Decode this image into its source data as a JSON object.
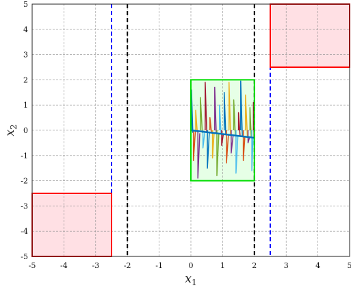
{
  "chart_data": {
    "type": "line",
    "xlabel": "x",
    "xlabel_sub": "1",
    "ylabel": "x",
    "ylabel_sub": "2",
    "xlim": [
      -5,
      5
    ],
    "ylim": [
      -5,
      5
    ],
    "xticks": [
      -5,
      -4,
      -3,
      -2,
      -1,
      0,
      1,
      2,
      3,
      4,
      5
    ],
    "yticks": [
      -5,
      -4,
      -3,
      -2,
      -1,
      0,
      1,
      2,
      3,
      4,
      5
    ],
    "xtick_labels": [
      "-5",
      "-4",
      "-3",
      "-2",
      "-1",
      "0",
      "1",
      "2",
      "3",
      "4",
      "5"
    ],
    "ytick_labels": [
      "-5",
      "-4",
      "-3",
      "-2",
      "-1",
      "0",
      "1",
      "2",
      "3",
      "4",
      "5"
    ],
    "grid": true,
    "grid_style": "dashed",
    "rectangles": [
      {
        "kind": "unsafe",
        "x": [
          -5,
          -2.5
        ],
        "y": [
          -5,
          -2.5
        ],
        "edge": "#ff0000",
        "fill": "#ffe0e4"
      },
      {
        "kind": "unsafe",
        "x": [
          2.5,
          5
        ],
        "y": [
          2.5,
          5
        ],
        "edge": "#ff0000",
        "fill": "#ffe0e4"
      },
      {
        "kind": "initial",
        "x": [
          0,
          2
        ],
        "y": [
          -2,
          2
        ],
        "edge": "#00dd00",
        "fill": "#e6ffe6"
      }
    ],
    "vertical_lines": [
      {
        "x": -2.5,
        "color": "#0000ff",
        "style": "dashed"
      },
      {
        "x": 2.5,
        "color": "#0000ff",
        "style": "dashed"
      },
      {
        "x": -2,
        "color": "#000000",
        "style": "dashed"
      },
      {
        "x": 2,
        "color": "#000000",
        "style": "dashed"
      }
    ],
    "trajectory_colors": [
      "#0072bd",
      "#d95319",
      "#edb120",
      "#7e2f8e",
      "#77ac30",
      "#4dbeee",
      "#a2142f"
    ],
    "trajectories": [
      {
        "x": [
          0.02,
          0.02,
          0.06
        ],
        "y": [
          0.0,
          1.6,
          -0.1
        ]
      },
      {
        "x": [
          0.08,
          0.08,
          0.14
        ],
        "y": [
          0.0,
          -1.2,
          -0.05
        ]
      },
      {
        "x": [
          0.15,
          0.15,
          0.2
        ],
        "y": [
          0.0,
          0.8,
          -0.08
        ]
      },
      {
        "x": [
          0.22,
          0.22,
          0.28
        ],
        "y": [
          0.0,
          -1.9,
          -0.12
        ]
      },
      {
        "x": [
          0.3,
          0.3,
          0.36
        ],
        "y": [
          0.0,
          1.3,
          -0.1
        ]
      },
      {
        "x": [
          0.38,
          0.38,
          0.44
        ],
        "y": [
          0.0,
          -0.7,
          -0.05
        ]
      },
      {
        "x": [
          0.45,
          0.45,
          0.5
        ],
        "y": [
          0.0,
          1.9,
          -0.1
        ]
      },
      {
        "x": [
          0.52,
          0.52,
          0.58
        ],
        "y": [
          0.0,
          -1.5,
          -0.09
        ]
      },
      {
        "x": [
          0.6,
          0.6,
          0.65
        ],
        "y": [
          0.0,
          0.5,
          -0.11
        ]
      },
      {
        "x": [
          0.68,
          0.68,
          0.73
        ],
        "y": [
          0.0,
          -1.1,
          -0.12
        ]
      },
      {
        "x": [
          0.75,
          0.75,
          0.8
        ],
        "y": [
          0.0,
          1.7,
          -0.13
        ]
      },
      {
        "x": [
          0.82,
          0.82,
          0.88
        ],
        "y": [
          0.0,
          -1.8,
          -0.15
        ]
      },
      {
        "x": [
          0.9,
          0.9,
          0.95
        ],
        "y": [
          0.0,
          1.0,
          -0.16
        ]
      },
      {
        "x": [
          0.97,
          0.97,
          1.02
        ],
        "y": [
          0.0,
          -0.6,
          -0.17
        ]
      },
      {
        "x": [
          1.05,
          1.05,
          1.1
        ],
        "y": [
          0.0,
          1.5,
          -0.18
        ]
      },
      {
        "x": [
          1.12,
          1.12,
          1.18
        ],
        "y": [
          0.0,
          -1.3,
          -0.18
        ]
      },
      {
        "x": [
          1.2,
          1.2,
          1.25
        ],
        "y": [
          0.0,
          1.9,
          -0.19
        ]
      },
      {
        "x": [
          1.27,
          1.27,
          1.33
        ],
        "y": [
          0.0,
          -0.9,
          -0.2
        ]
      },
      {
        "x": [
          1.35,
          1.35,
          1.4
        ],
        "y": [
          0.0,
          1.2,
          -0.21
        ]
      },
      {
        "x": [
          1.42,
          1.42,
          1.48
        ],
        "y": [
          0.0,
          -1.7,
          -0.22
        ]
      },
      {
        "x": [
          1.5,
          1.5,
          1.55
        ],
        "y": [
          0.0,
          0.7,
          -0.23
        ]
      },
      {
        "x": [
          1.57,
          1.57,
          1.62
        ],
        "y": [
          0.0,
          1.95,
          -0.24
        ]
      },
      {
        "x": [
          1.65,
          1.65,
          1.7
        ],
        "y": [
          0.0,
          -1.2,
          -0.25
        ]
      },
      {
        "x": [
          1.72,
          1.72,
          1.78
        ],
        "y": [
          0.0,
          1.4,
          -0.26
        ]
      },
      {
        "x": [
          1.8,
          1.8,
          1.85
        ],
        "y": [
          0.0,
          -0.5,
          -0.27
        ]
      },
      {
        "x": [
          1.86,
          1.86,
          1.9
        ],
        "y": [
          0.0,
          0.9,
          -0.28
        ]
      },
      {
        "x": [
          1.92,
          1.92,
          1.96
        ],
        "y": [
          0.0,
          -1.6,
          -0.29
        ]
      },
      {
        "x": [
          1.97,
          1.97,
          1.99
        ],
        "y": [
          0.0,
          1.1,
          -0.3
        ]
      }
    ],
    "mean_line": {
      "x": [
        0,
        2
      ],
      "y": [
        0.0,
        -0.3
      ],
      "color": "#0072bd"
    }
  }
}
